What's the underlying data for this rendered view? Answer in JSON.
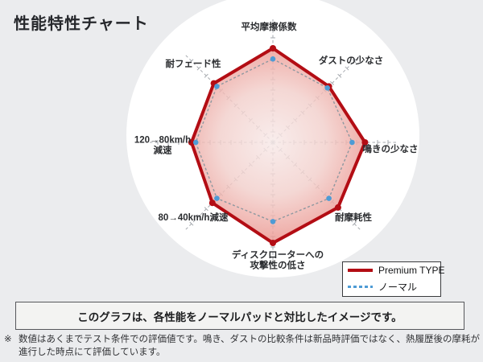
{
  "title": "性能特性チャート",
  "chart_data": {
    "type": "radar",
    "title": "性能特性チャート",
    "axes": [
      "平均摩擦係数",
      "ダストの少なさ",
      "鳴きの少なさ",
      "耐摩耗性",
      "ディスクローターへの攻撃性の低さ",
      "80→40km/h減速",
      "120→80km/h減速",
      "耐フェード性"
    ],
    "axis_label_lines": [
      [
        "平均摩擦係数"
      ],
      [
        "ダストの少なさ"
      ],
      [
        "鳴きの少なさ"
      ],
      [
        "耐摩耗性"
      ],
      [
        "ディスクローターへの",
        "攻撃性の低さ"
      ],
      [
        "80→40km/h減速"
      ],
      [
        "120→80km/h",
        "減速"
      ],
      [
        "耐フェード性"
      ]
    ],
    "scale_max": 5,
    "grid": "8 radial dashed axes with tick marks, no rings",
    "legend_position": "bottom-right",
    "series": [
      {
        "name": "Premium TYPE",
        "style": "solid",
        "color": "#b30d14",
        "values": [
          4.4,
          3.7,
          4.3,
          4.3,
          4.7,
          4.0,
          3.8,
          3.9
        ]
      },
      {
        "name": "ノーマル",
        "style": "dashed",
        "color": "#4e9bd5",
        "values": [
          3.9,
          3.6,
          3.7,
          3.7,
          3.7,
          3.7,
          3.6,
          3.7
        ]
      }
    ]
  },
  "message": "このグラフは、各性能をノーマルパッドと対比したイメージです。",
  "footnote": {
    "mark": "※",
    "text": "数値はあくまでテスト条件での評価値です。鳴き、ダストの比較条件は新品時評価ではなく、熱履歴後の摩耗が進行した時点にて評価しています。"
  },
  "colors": {
    "premium_line": "#b30d14",
    "normal_dot": "#4e9bd5",
    "normal_dash": "#8d98a0",
    "fill_inner": "#f7e9e8",
    "fill_outer": "#e98a83",
    "page_background": "#ebecee",
    "circle_background": "#ffffff"
  }
}
